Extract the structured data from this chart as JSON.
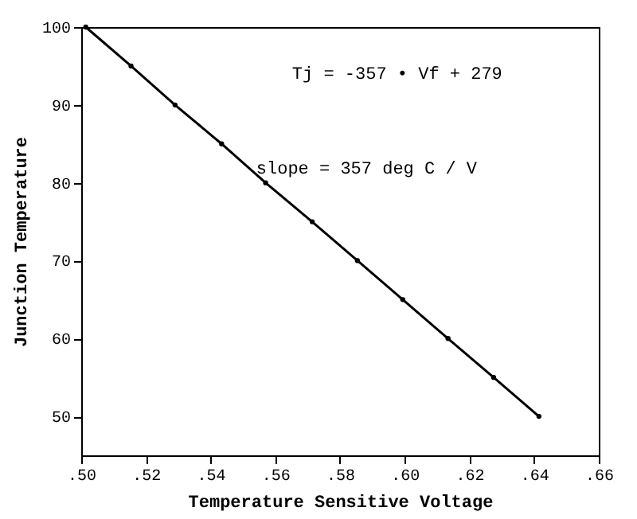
{
  "chart_data": {
    "type": "line",
    "xlabel": "Temperature Sensitive Voltage",
    "ylabel": "Junction Temperature",
    "x": [
      0.5014,
      0.5154,
      0.529,
      0.5434,
      0.557,
      0.5714,
      0.5854,
      0.5994,
      0.6134,
      0.6275,
      0.6415
    ],
    "series": [
      {
        "color": "#000000",
        "values": [
          100,
          95,
          90,
          85,
          80,
          75,
          70,
          65,
          60,
          55,
          50
        ]
      }
    ],
    "xlim": [
      0.5,
      0.66
    ],
    "xticks": [
      {
        "value": 0.5,
        "label": ".50"
      },
      {
        "value": 0.52,
        "label": ".52"
      },
      {
        "value": 0.54,
        "label": ".54"
      },
      {
        "value": 0.56,
        "label": ".56"
      },
      {
        "value": 0.58,
        "label": ".58"
      },
      {
        "value": 0.6,
        "label": ".60"
      },
      {
        "value": 0.62,
        "label": ".62"
      },
      {
        "value": 0.64,
        "label": ".64"
      },
      {
        "value": 0.66,
        "label": ".66"
      }
    ],
    "ylim": [
      45,
      100
    ],
    "yticks": [
      50,
      60,
      70,
      80,
      90,
      100
    ],
    "annotations": [
      "Tj = -357 • Vf + 279",
      "slope = 357 deg C / V"
    ],
    "grid": false,
    "marker": "circle",
    "line_style": "solid"
  }
}
